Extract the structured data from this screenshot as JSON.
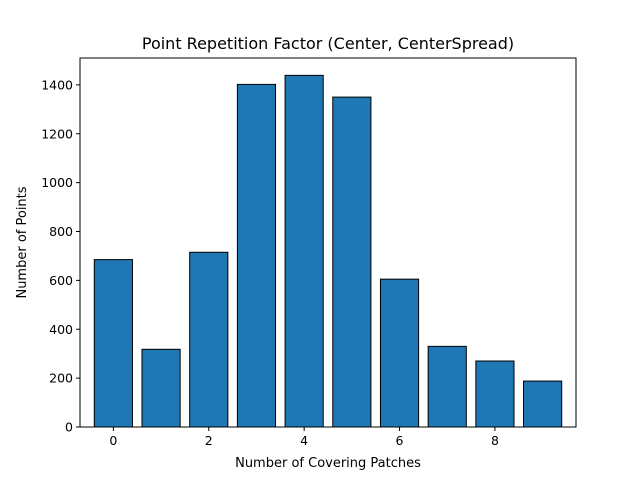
{
  "chart_data": {
    "type": "bar",
    "title": "Point Repetition Factor (Center, CenterSpread)",
    "xlabel": "Number of Covering Patches",
    "ylabel": "Number of Points",
    "categories": [
      0,
      1,
      2,
      3,
      4,
      5,
      6,
      7,
      8,
      9
    ],
    "values": [
      685,
      318,
      715,
      1402,
      1439,
      1350,
      605,
      330,
      270,
      188
    ],
    "xlim": [
      -0.7,
      9.7
    ],
    "ylim": [
      0,
      1510
    ],
    "xticks": [
      0,
      2,
      4,
      6,
      8
    ],
    "yticks": [
      0,
      200,
      400,
      600,
      800,
      1000,
      1200,
      1400
    ],
    "bar_color": "#1f77b4",
    "edge_color": "#000000",
    "grid": false
  }
}
